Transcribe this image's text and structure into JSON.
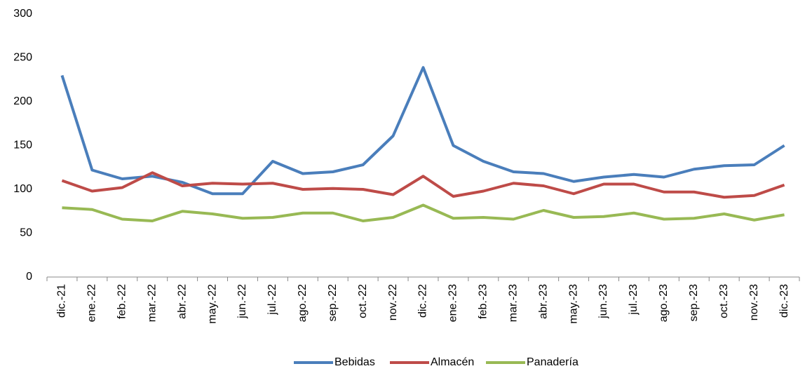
{
  "chart_data": {
    "type": "line",
    "categories": [
      "dic.-21",
      "ene.-22",
      "feb.-22",
      "mar.-22",
      "abr.-22",
      "may.-22",
      "jun.-22",
      "jul.-22",
      "ago.-22",
      "sep.-22",
      "oct.-22",
      "nov.-22",
      "dic.-22",
      "ene.-23",
      "feb.-23",
      "mar.-23",
      "abr.-23",
      "may.-23",
      "jun.-23",
      "jul.-23",
      "ago.-23",
      "sep.-23",
      "oct.-23",
      "nov.-23",
      "dic.-23"
    ],
    "series": [
      {
        "name": "Bebidas",
        "color": "#4a7ebb",
        "values": [
          230,
          122,
          112,
          115,
          108,
          95,
          95,
          132,
          118,
          120,
          128,
          161,
          239,
          150,
          132,
          120,
          118,
          109,
          114,
          117,
          114,
          123,
          127,
          128,
          150
        ]
      },
      {
        "name": "Almacén",
        "color": "#be4b48",
        "values": [
          110,
          98,
          102,
          119,
          104,
          107,
          106,
          107,
          100,
          101,
          100,
          94,
          115,
          92,
          98,
          107,
          104,
          95,
          106,
          106,
          97,
          97,
          91,
          93,
          105
        ]
      },
      {
        "name": "Panadería",
        "color": "#98b954",
        "values": [
          79,
          77,
          66,
          64,
          75,
          72,
          67,
          68,
          73,
          73,
          64,
          68,
          82,
          67,
          68,
          66,
          76,
          68,
          69,
          73,
          66,
          67,
          72,
          65,
          71
        ]
      }
    ],
    "ylim": [
      0,
      300
    ],
    "yticks": [
      0,
      50,
      100,
      150,
      200,
      250,
      300
    ],
    "grid": false,
    "legend": "bottom"
  }
}
